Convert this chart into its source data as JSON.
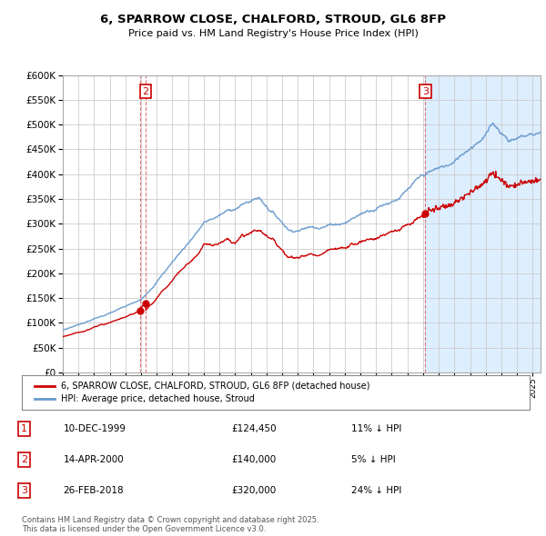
{
  "title": "6, SPARROW CLOSE, CHALFORD, STROUD, GL6 8FP",
  "subtitle": "Price paid vs. HM Land Registry's House Price Index (HPI)",
  "sales": [
    {
      "label": "1",
      "date_num": 1999.94,
      "price": 124450,
      "date_str": "10-DEC-1999",
      "pct": "11% ↓ HPI"
    },
    {
      "label": "2",
      "date_num": 2000.29,
      "price": 140000,
      "date_str": "14-APR-2000",
      "pct": "5% ↓ HPI"
    },
    {
      "label": "3",
      "date_num": 2018.15,
      "price": 320000,
      "date_str": "26-FEB-2018",
      "pct": "24% ↓ HPI"
    }
  ],
  "legend_property_label": "6, SPARROW CLOSE, CHALFORD, STROUD, GL6 8FP (detached house)",
  "legend_hpi_label": "HPI: Average price, detached house, Stroud",
  "footnote": "Contains HM Land Registry data © Crown copyright and database right 2025.\nThis data is licensed under the Open Government Licence v3.0.",
  "property_color": "#cc0000",
  "hpi_color": "#6699cc",
  "hpi_fill_color": "#ddeeff",
  "background_color": "#ffffff",
  "grid_color": "#cccccc",
  "xmin": 1995,
  "xmax": 2025.5,
  "ymin": 0,
  "ymax": 600000,
  "yticks": [
    0,
    50000,
    100000,
    150000,
    200000,
    250000,
    300000,
    350000,
    400000,
    450000,
    500000,
    550000,
    600000
  ]
}
